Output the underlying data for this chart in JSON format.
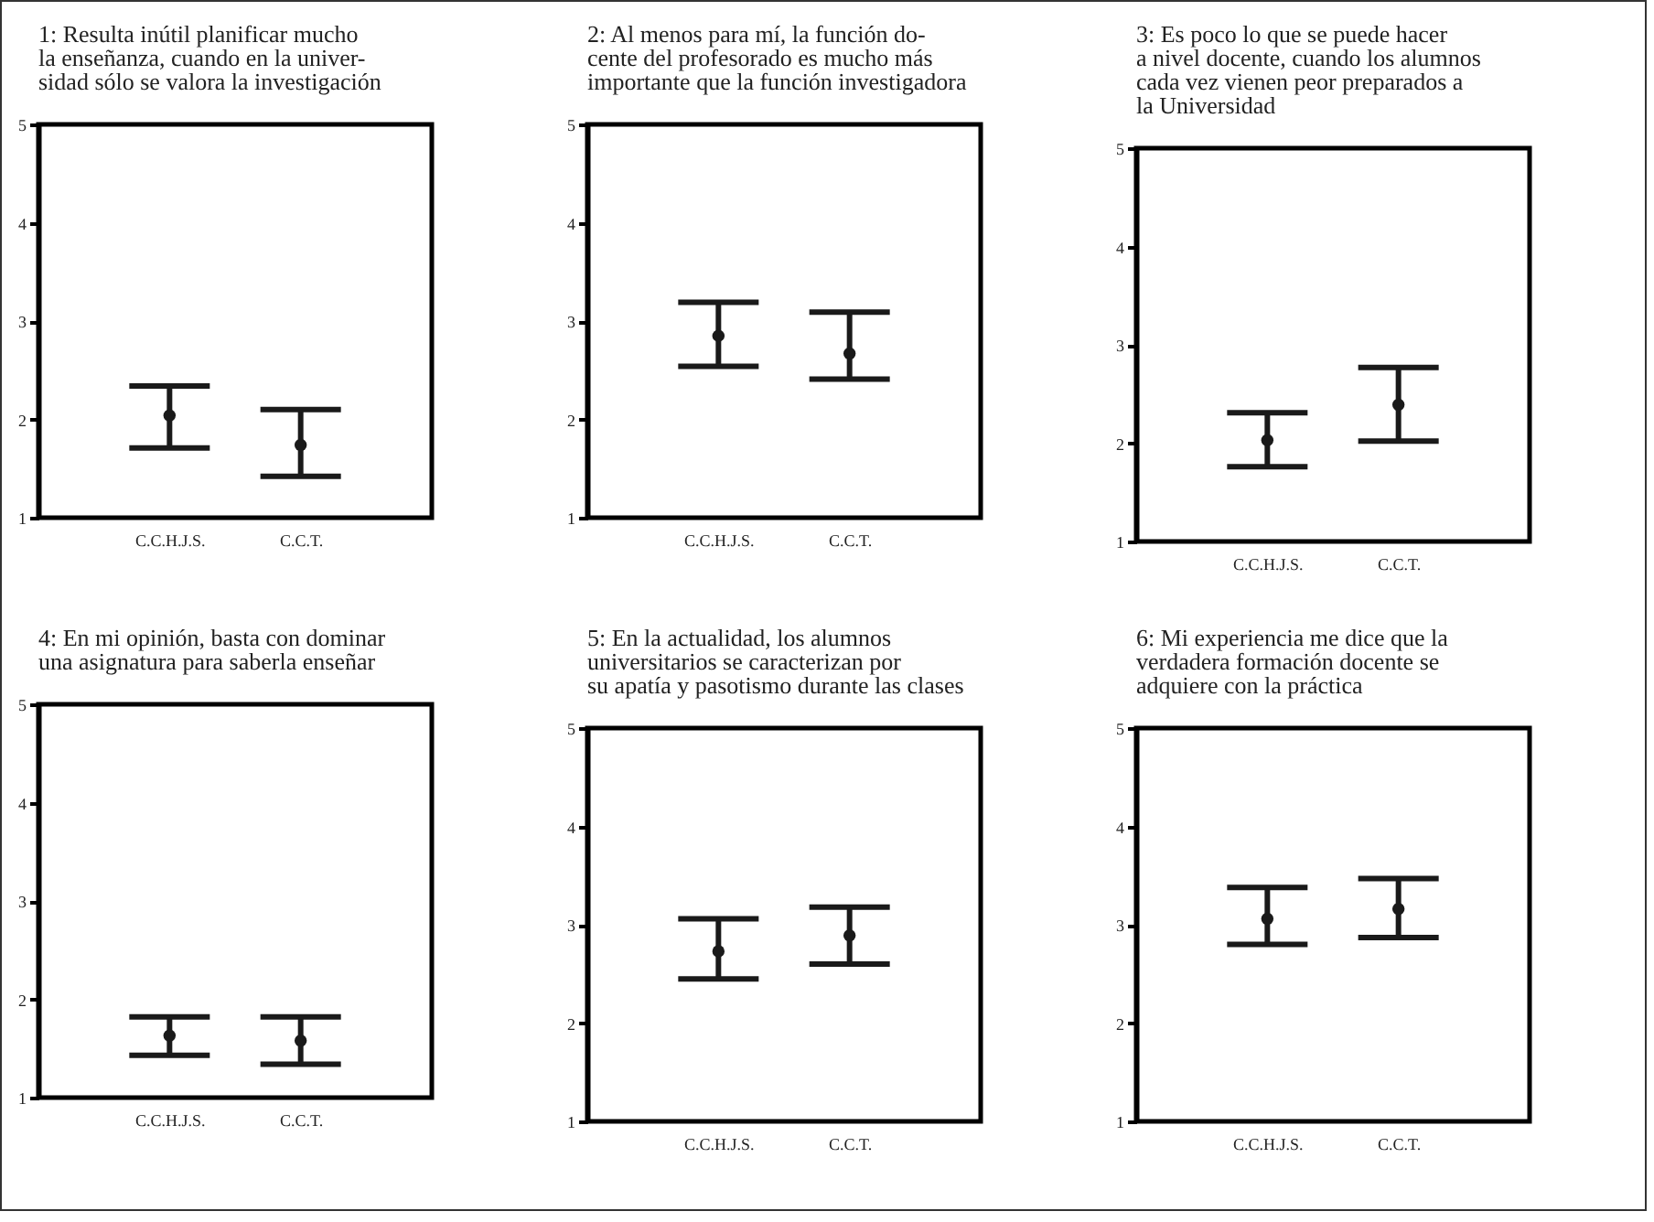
{
  "chart_data": [
    {
      "type": "scatter",
      "title": "1: Resulta inútil planificar mucho\nla enseñanza, cuando en la univer-\nsidad sólo se valora la investigación",
      "categories": [
        "C.C.H.J.S.",
        "C.C.T."
      ],
      "values": [
        2.04,
        1.74
      ],
      "errors": [
        [
          1.71,
          2.34
        ],
        [
          1.42,
          2.1
        ]
      ],
      "color": "#1a1a1a",
      "marker": "circle",
      "ylim": [
        1,
        5
      ],
      "yticks": [
        1,
        2,
        3,
        4,
        5
      ]
    },
    {
      "type": "scatter",
      "title": "2: Al menos para mí, la función do-\ncente del profesorado es mucho más\nimportante que la función investigadora",
      "categories": [
        "C.C.H.J.S.",
        "C.C.T."
      ],
      "values": [
        2.85,
        2.67
      ],
      "errors": [
        [
          2.54,
          3.19
        ],
        [
          2.41,
          3.09
        ]
      ],
      "color": "#1a1a1a",
      "marker": "circle",
      "ylim": [
        1,
        5
      ],
      "yticks": [
        1,
        2,
        3,
        4,
        5
      ]
    },
    {
      "type": "scatter",
      "title": "3: Es poco lo que se puede hacer\na nivel docente, cuando los alumnos\ncada vez vienen peor preparados a\nla Universidad",
      "categories": [
        "C.C.H.J.S.",
        "C.C.T."
      ],
      "values": [
        2.03,
        2.39
      ],
      "errors": [
        [
          1.76,
          2.31
        ],
        [
          2.02,
          2.77
        ]
      ],
      "color": "#1a1a1a",
      "marker": "circle",
      "ylim": [
        1,
        5
      ],
      "yticks": [
        1,
        2,
        3,
        4,
        5
      ]
    },
    {
      "type": "scatter",
      "title": "4: En mi opinión, basta con dominar\nuna asignatura para saberla enseñar",
      "categories": [
        "C.C.H.J.S.",
        "C.C.T."
      ],
      "values": [
        1.63,
        1.58
      ],
      "errors": [
        [
          1.43,
          1.82
        ],
        [
          1.34,
          1.82
        ]
      ],
      "color": "#1a1a1a",
      "marker": "circle",
      "ylim": [
        1,
        5
      ],
      "yticks": [
        1,
        2,
        3,
        4,
        5
      ]
    },
    {
      "type": "scatter",
      "title": "5: En la actualidad, los alumnos\nuniversitarios se caracterizan por\nsu apatía y pasotismo durante las clases",
      "categories": [
        "C.C.H.J.S.",
        "C.C.T."
      ],
      "values": [
        2.73,
        2.89
      ],
      "errors": [
        [
          2.45,
          3.06
        ],
        [
          2.6,
          3.18
        ]
      ],
      "color": "#1a1a1a",
      "marker": "circle",
      "ylim": [
        1,
        5
      ],
      "yticks": [
        1,
        2,
        3,
        4,
        5
      ]
    },
    {
      "type": "scatter",
      "title": "6: Mi experiencia me dice que la\nverdadera formación docente se\nadquiere con la práctica",
      "categories": [
        "C.C.H.J.S.",
        "C.C.T."
      ],
      "values": [
        3.06,
        3.16
      ],
      "errors": [
        [
          2.8,
          3.38
        ],
        [
          2.87,
          3.47
        ]
      ],
      "color": "#1a1a1a",
      "marker": "circle",
      "ylim": [
        1,
        5
      ],
      "yticks": [
        1,
        2,
        3,
        4,
        5
      ]
    }
  ]
}
